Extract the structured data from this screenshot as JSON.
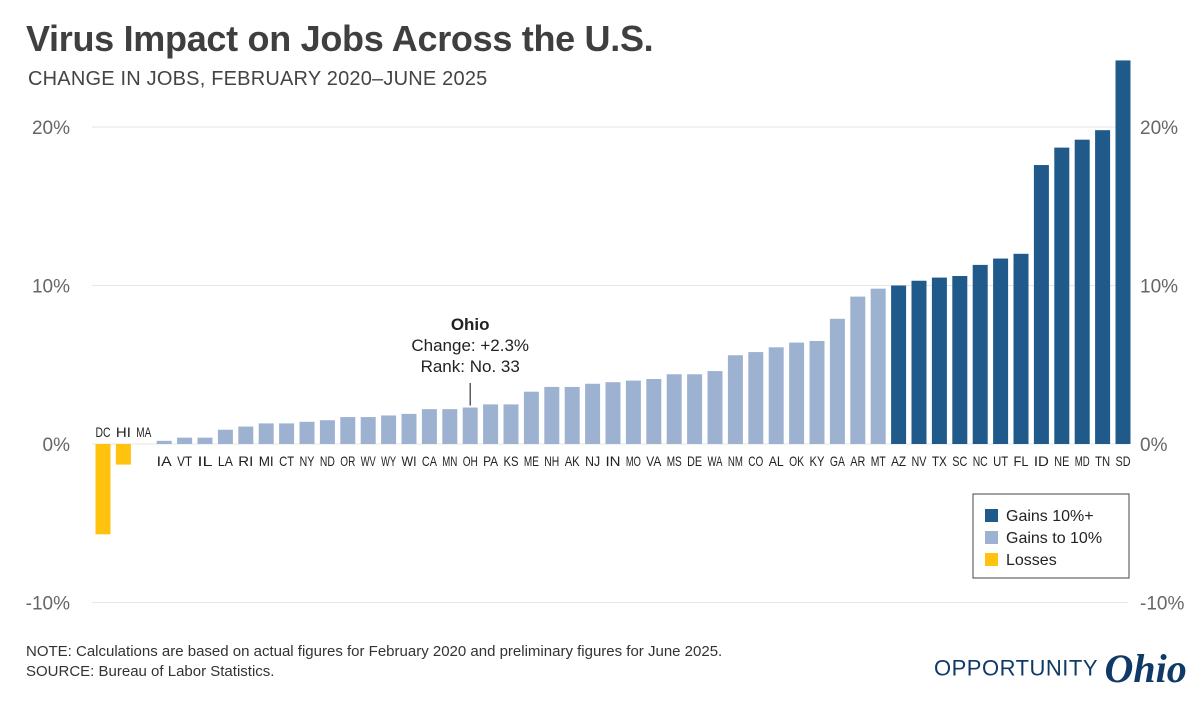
{
  "title": "Virus Impact on Jobs Across the U.S.",
  "subtitle": "CHANGE IN JOBS, FEBRUARY 2020–JUNE 2025",
  "note": "NOTE: Calculations are based on actual figures for February 2020 and preliminary figures for June 2025.",
  "source": "SOURCE: Bureau of Labor Statistics.",
  "logo": {
    "word": "OPPORTUNITY",
    "script": "Ohio"
  },
  "annotation": {
    "state": "OH",
    "title": "Ohio",
    "line1": "Change: +2.3%",
    "line2": "Rank: No. 33"
  },
  "chart_data": {
    "type": "bar",
    "title": "Virus Impact on Jobs Across the U.S.",
    "subtitle": "CHANGE IN JOBS, FEBRUARY 2020–JUNE 2025",
    "ylim": [
      -10,
      20
    ],
    "y_ticks": [
      -10,
      0,
      10,
      20
    ],
    "y_tick_labels": [
      "-10%",
      "0%",
      "10%",
      "20%"
    ],
    "grid": true,
    "legend_position": "bottom-right",
    "colors": {
      "gains_10_plus": "#1f5a8b",
      "gains_to_10": "#9db2d0",
      "losses": "#ffc20e",
      "grid": "#e6e6e6",
      "axis_text": "#666666"
    },
    "legend": [
      {
        "label": "Gains 10%+",
        "color_key": "gains_10_plus"
      },
      {
        "label": "Gains to 10%",
        "color_key": "gains_to_10"
      },
      {
        "label": "Losses",
        "color_key": "losses"
      }
    ],
    "categories": [
      "DC",
      "HI",
      "MA",
      "IA",
      "VT",
      "IL",
      "LA",
      "RI",
      "MI",
      "CT",
      "NY",
      "ND",
      "OR",
      "WV",
      "WY",
      "WI",
      "CA",
      "MN",
      "OH",
      "PA",
      "KS",
      "ME",
      "NH",
      "AK",
      "NJ",
      "IN",
      "MO",
      "VA",
      "MS",
      "DE",
      "WA",
      "NM",
      "CO",
      "AL",
      "OK",
      "KY",
      "GA",
      "AR",
      "MT",
      "AZ",
      "NV",
      "TX",
      "SC",
      "NC",
      "UT",
      "FL",
      "ID",
      "NE",
      "MD",
      "TN",
      "SD"
    ],
    "values": [
      -5.7,
      -1.3,
      0.0,
      0.2,
      0.4,
      0.4,
      0.9,
      1.1,
      1.3,
      1.3,
      1.4,
      1.5,
      1.7,
      1.7,
      1.8,
      1.9,
      2.2,
      2.2,
      2.3,
      2.5,
      2.5,
      3.3,
      3.6,
      3.6,
      3.8,
      3.9,
      4.0,
      4.1,
      4.4,
      4.4,
      4.6,
      5.6,
      5.8,
      6.1,
      6.4,
      6.5,
      7.9,
      9.3,
      9.8,
      10.0,
      10.3,
      10.5,
      10.6,
      11.3,
      11.7,
      12.0,
      17.6,
      18.7,
      19.2,
      19.8,
      24.2
    ]
  }
}
